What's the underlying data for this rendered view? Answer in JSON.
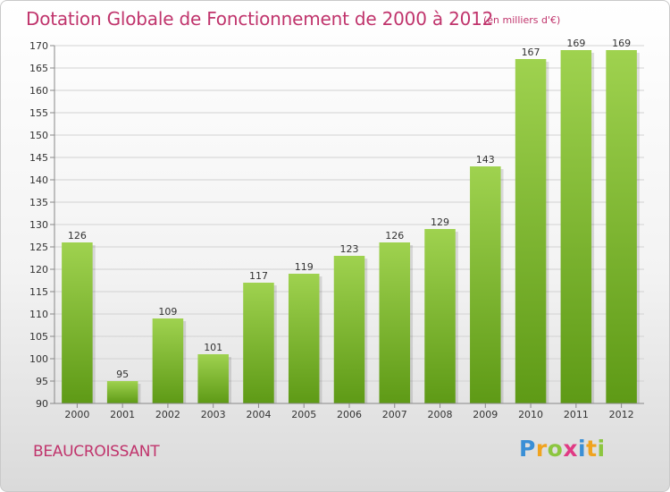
{
  "header": {
    "title": "Dotation Globale de Fonctionnement de 2000 à 2012",
    "subtitle": "(en milliers d'€)"
  },
  "footer": {
    "place": "BEAUCROISSANT",
    "logo_letters": [
      "P",
      "r",
      "o",
      "x",
      "i",
      "t",
      "i"
    ],
    "logo_colors": [
      "#3a8fd6",
      "#f0a31f",
      "#8cc63f",
      "#e03a84",
      "#3a8fd6",
      "#f0a31f",
      "#8cc63f"
    ]
  },
  "chart_data": {
    "type": "bar",
    "title": "Dotation Globale de Fonctionnement de 2000 à 2012",
    "subtitle": "(en milliers d'€)",
    "categories": [
      "2000",
      "2001",
      "2002",
      "2003",
      "2004",
      "2005",
      "2006",
      "2007",
      "2008",
      "2009",
      "2010",
      "2011",
      "2012"
    ],
    "values": [
      126,
      95,
      109,
      101,
      117,
      119,
      123,
      126,
      129,
      143,
      167,
      169,
      169
    ],
    "ylim": [
      90,
      170
    ],
    "yticks": [
      90,
      95,
      100,
      105,
      110,
      115,
      120,
      125,
      130,
      135,
      140,
      145,
      150,
      155,
      160,
      165,
      170
    ],
    "grid": true,
    "bar_color_top": "#9fd24f",
    "bar_color_bottom": "#5e9a16"
  }
}
